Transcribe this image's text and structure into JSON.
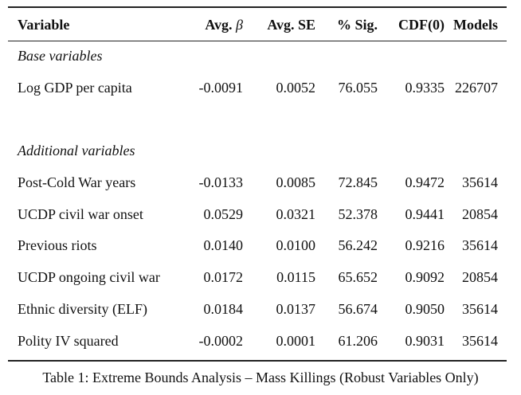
{
  "table": {
    "headers": {
      "variable": "Variable",
      "avg_beta_text": "Avg. ",
      "avg_beta_symbol": "β",
      "avg_se": "Avg. SE",
      "pct_sig": "% Sig.",
      "cdf0": "CDF(0)",
      "models": "Models"
    },
    "sections": [
      {
        "title": "Base variables",
        "rows": [
          {
            "variable": "Log GDP per capita",
            "avg_beta": "-0.0091",
            "avg_se": "0.0052",
            "pct_sig": "76.055",
            "cdf0": "0.9335",
            "models": "226707"
          }
        ]
      },
      {
        "title": "Additional variables",
        "rows": [
          {
            "variable": "Post-Cold War years",
            "avg_beta": "-0.0133",
            "avg_se": "0.0085",
            "pct_sig": "72.845",
            "cdf0": "0.9472",
            "models": "35614"
          },
          {
            "variable": "UCDP civil war onset",
            "avg_beta": "0.0529",
            "avg_se": "0.0321",
            "pct_sig": "52.378",
            "cdf0": "0.9441",
            "models": "20854"
          },
          {
            "variable": "Previous riots",
            "avg_beta": "0.0140",
            "avg_se": "0.0100",
            "pct_sig": "56.242",
            "cdf0": "0.9216",
            "models": "35614"
          },
          {
            "variable": "UCDP ongoing civil war",
            "avg_beta": "0.0172",
            "avg_se": "0.0115",
            "pct_sig": "65.652",
            "cdf0": "0.9092",
            "models": "20854"
          },
          {
            "variable": "Ethnic diversity (ELF)",
            "avg_beta": "0.0184",
            "avg_se": "0.0137",
            "pct_sig": "56.674",
            "cdf0": "0.9050",
            "models": "35614"
          },
          {
            "variable": "Polity IV squared",
            "avg_beta": "-0.0002",
            "avg_se": "0.0001",
            "pct_sig": "61.206",
            "cdf0": "0.9031",
            "models": "35614"
          }
        ]
      }
    ]
  },
  "caption": "Table 1: Extreme Bounds Analysis – Mass Killings (Robust Variables Only)"
}
